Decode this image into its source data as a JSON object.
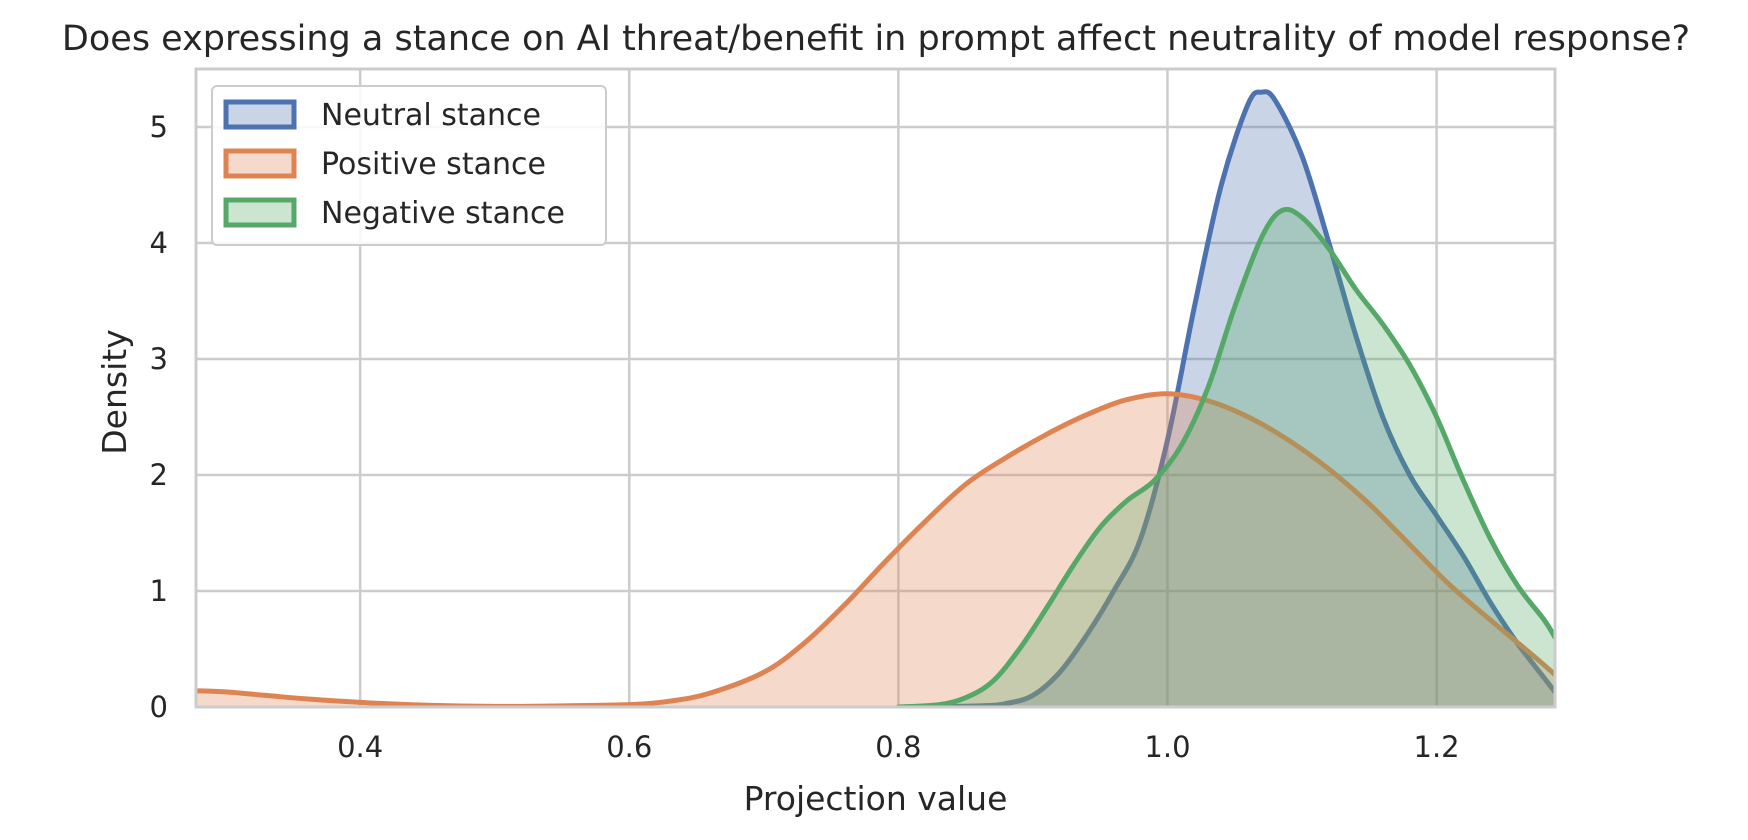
{
  "chart_data": {
    "type": "area",
    "title": "Does expressing a stance on AI threat/benefit in prompt affect neutrality of model response?",
    "xlabel": "Projection value",
    "ylabel": "Density",
    "xlim": [
      0.278,
      1.288
    ],
    "ylim": [
      0,
      5.5
    ],
    "xticks": [
      0.4,
      0.6,
      0.8,
      1.0,
      1.2
    ],
    "xtick_labels": [
      "0.4",
      "0.6",
      "0.8",
      "1.0",
      "1.2"
    ],
    "yticks": [
      0,
      1,
      2,
      3,
      4,
      5
    ],
    "ytick_labels": [
      "0",
      "1",
      "2",
      "3",
      "4",
      "5"
    ],
    "grid": true,
    "legend_position": "top-left",
    "series": [
      {
        "name": "Neutral stance",
        "color": "#4c72b0",
        "points": [
          [
            0.8,
            0.0
          ],
          [
            0.86,
            0.01
          ],
          [
            0.88,
            0.03
          ],
          [
            0.9,
            0.1
          ],
          [
            0.92,
            0.3
          ],
          [
            0.94,
            0.62
          ],
          [
            0.96,
            1.0
          ],
          [
            0.98,
            1.45
          ],
          [
            1.0,
            2.3
          ],
          [
            1.02,
            3.45
          ],
          [
            1.04,
            4.5
          ],
          [
            1.06,
            5.2
          ],
          [
            1.07,
            5.3
          ],
          [
            1.08,
            5.23
          ],
          [
            1.1,
            4.75
          ],
          [
            1.12,
            4.0
          ],
          [
            1.14,
            3.2
          ],
          [
            1.16,
            2.5
          ],
          [
            1.18,
            2.0
          ],
          [
            1.2,
            1.65
          ],
          [
            1.22,
            1.3
          ],
          [
            1.24,
            0.9
          ],
          [
            1.26,
            0.55
          ],
          [
            1.28,
            0.25
          ],
          [
            1.288,
            0.13
          ]
        ]
      },
      {
        "name": "Positive stance",
        "color": "#dd8452",
        "points": [
          [
            0.278,
            0.14
          ],
          [
            0.3,
            0.13
          ],
          [
            0.33,
            0.1
          ],
          [
            0.36,
            0.07
          ],
          [
            0.4,
            0.04
          ],
          [
            0.45,
            0.015
          ],
          [
            0.5,
            0.005
          ],
          [
            0.55,
            0.01
          ],
          [
            0.6,
            0.02
          ],
          [
            0.63,
            0.05
          ],
          [
            0.66,
            0.12
          ],
          [
            0.7,
            0.3
          ],
          [
            0.73,
            0.55
          ],
          [
            0.76,
            0.88
          ],
          [
            0.79,
            1.25
          ],
          [
            0.82,
            1.6
          ],
          [
            0.85,
            1.92
          ],
          [
            0.88,
            2.15
          ],
          [
            0.91,
            2.35
          ],
          [
            0.94,
            2.52
          ],
          [
            0.97,
            2.65
          ],
          [
            1.0,
            2.7
          ],
          [
            1.03,
            2.64
          ],
          [
            1.06,
            2.5
          ],
          [
            1.09,
            2.3
          ],
          [
            1.12,
            2.05
          ],
          [
            1.15,
            1.75
          ],
          [
            1.18,
            1.4
          ],
          [
            1.21,
            1.05
          ],
          [
            1.24,
            0.75
          ],
          [
            1.27,
            0.46
          ],
          [
            1.288,
            0.28
          ]
        ]
      },
      {
        "name": "Negative stance",
        "color": "#55a868",
        "points": [
          [
            0.8,
            0.0
          ],
          [
            0.83,
            0.02
          ],
          [
            0.85,
            0.08
          ],
          [
            0.87,
            0.22
          ],
          [
            0.89,
            0.5
          ],
          [
            0.91,
            0.85
          ],
          [
            0.93,
            1.22
          ],
          [
            0.95,
            1.55
          ],
          [
            0.97,
            1.78
          ],
          [
            0.99,
            1.95
          ],
          [
            1.01,
            2.25
          ],
          [
            1.03,
            2.75
          ],
          [
            1.05,
            3.45
          ],
          [
            1.07,
            4.05
          ],
          [
            1.085,
            4.28
          ],
          [
            1.1,
            4.22
          ],
          [
            1.12,
            3.95
          ],
          [
            1.14,
            3.6
          ],
          [
            1.16,
            3.3
          ],
          [
            1.18,
            2.95
          ],
          [
            1.2,
            2.5
          ],
          [
            1.22,
            1.95
          ],
          [
            1.24,
            1.45
          ],
          [
            1.26,
            1.05
          ],
          [
            1.28,
            0.75
          ],
          [
            1.288,
            0.6
          ]
        ]
      }
    ]
  }
}
